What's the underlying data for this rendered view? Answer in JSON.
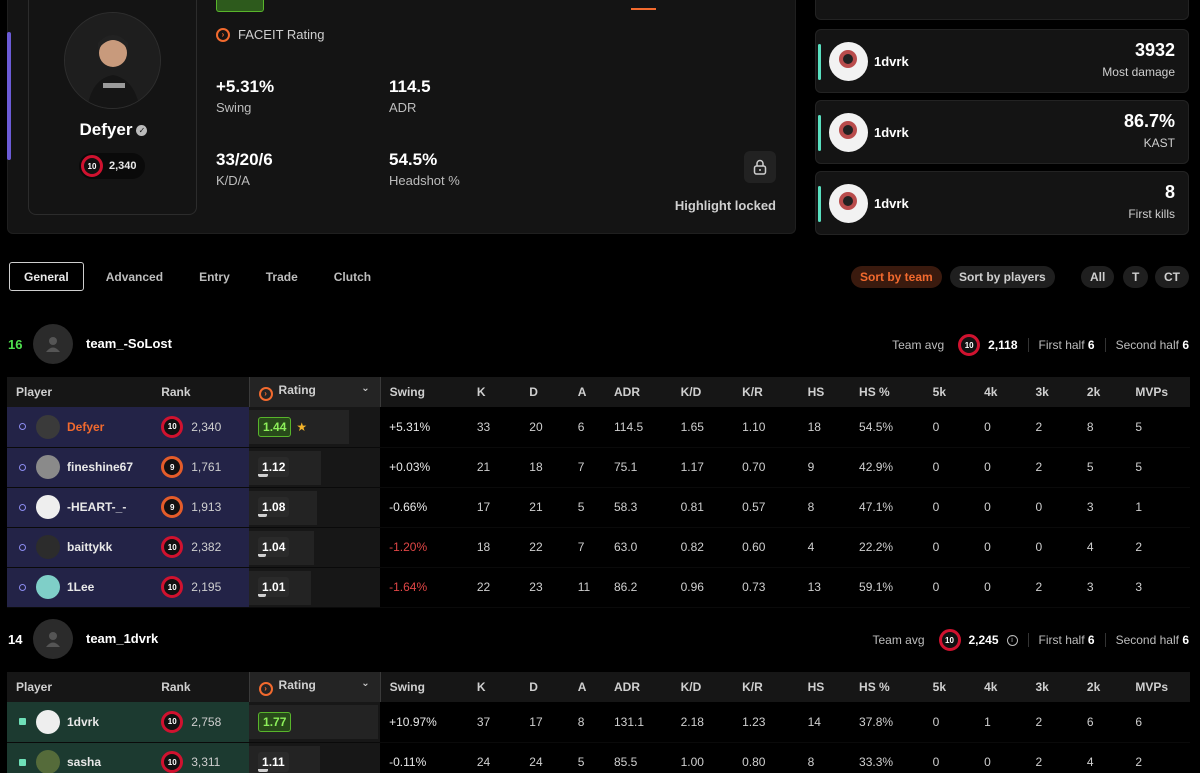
{
  "profile": {
    "name": "Defyer",
    "elo": "2,340",
    "level": "10",
    "rating_label": "FACEIT Rating",
    "stats": [
      {
        "value": "+5.31%",
        "label": "Swing"
      },
      {
        "value": "114.5",
        "label": "ADR"
      },
      {
        "value": "33/20/6",
        "label": "K/D/A"
      },
      {
        "value": "54.5%",
        "label": "Headshot %"
      }
    ],
    "highlight": "Highlight locked"
  },
  "awards": [
    {
      "player": "1dvrk",
      "value": "3932",
      "label": "Most damage"
    },
    {
      "player": "1dvrk",
      "value": "86.7%",
      "label": "KAST"
    },
    {
      "player": "1dvrk",
      "value": "8",
      "label": "First kills"
    }
  ],
  "tabs": [
    "General",
    "Advanced",
    "Entry",
    "Trade",
    "Clutch"
  ],
  "sort": {
    "team": "Sort by team",
    "players": "Sort by players"
  },
  "sides": [
    "All",
    "T",
    "CT"
  ],
  "columns": [
    "Player",
    "Rank",
    "Rating",
    "Swing",
    "K",
    "D",
    "A",
    "ADR",
    "K/D",
    "K/R",
    "HS",
    "HS %",
    "5k",
    "4k",
    "3k",
    "2k",
    "MVPs"
  ],
  "team_avg_label": "Team avg",
  "first_half_label": "First half",
  "second_half_label": "Second half",
  "teams": [
    {
      "score": "16",
      "name": "team_-SoLost",
      "avg_elo": "2,118",
      "first_half": "6",
      "second_half": "6",
      "players": [
        {
          "name": "Defyer",
          "level": "10",
          "elo": "2,340",
          "rating": "1.44",
          "swing": "+5.31%",
          "k": "33",
          "d": "20",
          "a": "6",
          "adr": "114.5",
          "kd": "1.65",
          "kr": "1.10",
          "hs": "18",
          "hsp": "54.5%",
          "k5": "0",
          "k4": "0",
          "k3": "2",
          "k2": "8",
          "mvps": "5"
        },
        {
          "name": "fineshine67",
          "level": "9",
          "elo": "1,761",
          "rating": "1.12",
          "swing": "+0.03%",
          "k": "21",
          "d": "18",
          "a": "7",
          "adr": "75.1",
          "kd": "1.17",
          "kr": "0.70",
          "hs": "9",
          "hsp": "42.9%",
          "k5": "0",
          "k4": "0",
          "k3": "2",
          "k2": "5",
          "mvps": "5"
        },
        {
          "name": "-HEART-_-",
          "level": "9",
          "elo": "1,913",
          "rating": "1.08",
          "swing": "-0.66%",
          "k": "17",
          "d": "21",
          "a": "5",
          "adr": "58.3",
          "kd": "0.81",
          "kr": "0.57",
          "hs": "8",
          "hsp": "47.1%",
          "k5": "0",
          "k4": "0",
          "k3": "0",
          "k2": "3",
          "mvps": "1"
        },
        {
          "name": "baittykk",
          "level": "10",
          "elo": "2,382",
          "rating": "1.04",
          "swing": "-1.20%",
          "k": "18",
          "d": "22",
          "a": "7",
          "adr": "63.0",
          "kd": "0.82",
          "kr": "0.60",
          "hs": "4",
          "hsp": "22.2%",
          "k5": "0",
          "k4": "0",
          "k3": "0",
          "k2": "4",
          "mvps": "2"
        },
        {
          "name": "1Lee",
          "level": "10",
          "elo": "2,195",
          "rating": "1.01",
          "swing": "-1.64%",
          "k": "22",
          "d": "23",
          "a": "11",
          "adr": "86.2",
          "kd": "0.96",
          "kr": "0.73",
          "hs": "13",
          "hsp": "59.1%",
          "k5": "0",
          "k4": "0",
          "k3": "2",
          "k2": "3",
          "mvps": "3"
        }
      ]
    },
    {
      "score": "14",
      "name": "team_1dvrk",
      "avg_elo": "2,245",
      "first_half": "6",
      "second_half": "6",
      "players": [
        {
          "name": "1dvrk",
          "level": "10",
          "elo": "2,758",
          "rating": "1.77",
          "swing": "+10.97%",
          "k": "37",
          "d": "17",
          "a": "8",
          "adr": "131.1",
          "kd": "2.18",
          "kr": "1.23",
          "hs": "14",
          "hsp": "37.8%",
          "k5": "0",
          "k4": "1",
          "k3": "2",
          "k2": "6",
          "mvps": "6"
        },
        {
          "name": "sasha",
          "level": "10",
          "elo": "3,311",
          "rating": "1.11",
          "swing": "-0.11%",
          "k": "24",
          "d": "24",
          "a": "5",
          "adr": "85.5",
          "kd": "1.00",
          "kr": "0.80",
          "hs": "8",
          "hsp": "33.3%",
          "k5": "0",
          "k4": "0",
          "k3": "2",
          "k2": "4",
          "mvps": "2"
        }
      ]
    }
  ],
  "colors": {
    "accent": "#f26a2e",
    "team1_row": "#232347",
    "team2_row": "#1c3a30",
    "negative": "#e04646",
    "positive_rating": "#8df05a"
  },
  "icons": [
    "verified-icon",
    "lock-icon",
    "faceit-icon",
    "chevron-down-icon",
    "star-icon",
    "info-icon",
    "team-avatar-icon"
  ]
}
